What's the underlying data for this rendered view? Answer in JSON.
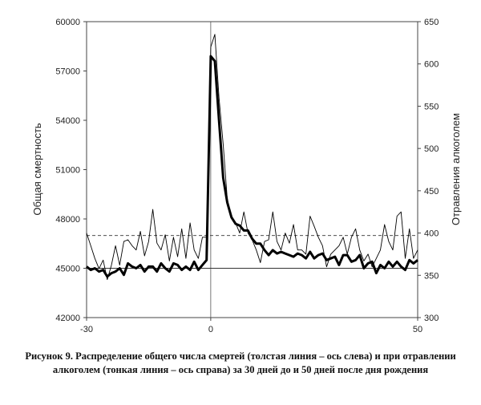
{
  "caption": "Рисунок 9. Распределение общего числа смертей (толстая линия – ось слева) и при отравлении алкоголем (тонкая линия – ось справа) за 30 дней до и 50 дней после дня рождения",
  "chart_data": {
    "type": "line",
    "title": "",
    "xlabel": "",
    "ylabel_left": "Общая смертность",
    "ylabel_right": "Отравления алкоголем",
    "xlim": [
      -30,
      50
    ],
    "ylim_left": [
      42000,
      60000
    ],
    "ylim_right": [
      300,
      650
    ],
    "x_ticks": [
      -30,
      0,
      50
    ],
    "y_ticks_left": [
      42000,
      45000,
      48000,
      51000,
      54000,
      57000,
      60000
    ],
    "y_ticks_right": [
      300,
      350,
      400,
      450,
      500,
      550,
      600,
      650
    ],
    "reference_lines": {
      "left_axis_y": 45000,
      "right_axis_y": 397,
      "vertical_x": 0
    },
    "grid": false,
    "legend": "none",
    "series": [
      {
        "axis": "left",
        "style": "thick",
        "x": [
          -30,
          -29,
          -28,
          -27,
          -26,
          -25,
          -24,
          -23,
          -22,
          -21,
          -20,
          -19,
          -18,
          -17,
          -16,
          -15,
          -14,
          -13,
          -12,
          -11,
          -10,
          -9,
          -8,
          -7,
          -6,
          -5,
          -4,
          -3,
          -2,
          -1,
          0,
          1,
          2,
          3,
          4,
          5,
          6,
          7,
          8,
          9,
          10,
          11,
          12,
          13,
          14,
          15,
          16,
          17,
          18,
          19,
          20,
          21,
          22,
          23,
          24,
          25,
          26,
          27,
          28,
          29,
          30,
          31,
          32,
          33,
          34,
          35,
          36,
          37,
          38,
          39,
          40,
          41,
          42,
          43,
          44,
          45,
          46,
          47,
          48,
          49,
          50
        ],
        "values": [
          45100,
          44900,
          45000,
          44800,
          44900,
          44500,
          44700,
          44800,
          45000,
          44600,
          45300,
          45100,
          45000,
          45200,
          44800,
          45100,
          45100,
          44800,
          45300,
          45000,
          44800,
          45300,
          45200,
          44900,
          45100,
          44900,
          45400,
          44900,
          45200,
          45500,
          57900,
          57600,
          54000,
          50500,
          49000,
          48100,
          47700,
          47600,
          47300,
          47300,
          46800,
          46500,
          46500,
          46100,
          45800,
          46100,
          45900,
          46000,
          45900,
          45800,
          45700,
          45900,
          45800,
          45600,
          46000,
          45600,
          45800,
          45900,
          45500,
          45600,
          45700,
          45200,
          45800,
          45800,
          45400,
          45500,
          45800,
          45000,
          45300,
          45400,
          44700,
          45200,
          45000,
          45400,
          45100,
          45400,
          45100,
          44900,
          45500,
          45300,
          45500
        ]
      },
      {
        "axis": "right",
        "style": "thin",
        "x": [
          -30,
          -29,
          -28,
          -27,
          -26,
          -25,
          -24,
          -23,
          -22,
          -21,
          -20,
          -19,
          -18,
          -17,
          -16,
          -15,
          -14,
          -13,
          -12,
          -11,
          -10,
          -9,
          -8,
          -7,
          -6,
          -5,
          -4,
          -3,
          -2,
          -1,
          0,
          1,
          2,
          3,
          4,
          5,
          6,
          7,
          8,
          9,
          10,
          11,
          12,
          13,
          14,
          15,
          16,
          17,
          18,
          19,
          20,
          21,
          22,
          23,
          24,
          25,
          26,
          27,
          28,
          29,
          30,
          31,
          32,
          33,
          34,
          35,
          36,
          37,
          38,
          39,
          40,
          41,
          42,
          43,
          44,
          45,
          46,
          47,
          48,
          49,
          50
        ],
        "values": [
          400,
          385,
          370,
          358,
          368,
          345,
          362,
          385,
          362,
          390,
          392,
          385,
          380,
          402,
          373,
          390,
          428,
          388,
          380,
          398,
          367,
          395,
          372,
          405,
          370,
          412,
          380,
          370,
          395,
          395,
          620,
          635,
          560,
          505,
          440,
          420,
          412,
          400,
          425,
          400,
          392,
          380,
          365,
          390,
          392,
          425,
          390,
          380,
          400,
          388,
          410,
          380,
          380,
          375,
          420,
          408,
          395,
          385,
          360,
          375,
          380,
          385,
          395,
          375,
          395,
          405,
          380,
          367,
          375,
          360,
          370,
          380,
          410,
          390,
          380,
          420,
          425,
          370,
          405,
          370,
          380
        ]
      }
    ]
  }
}
